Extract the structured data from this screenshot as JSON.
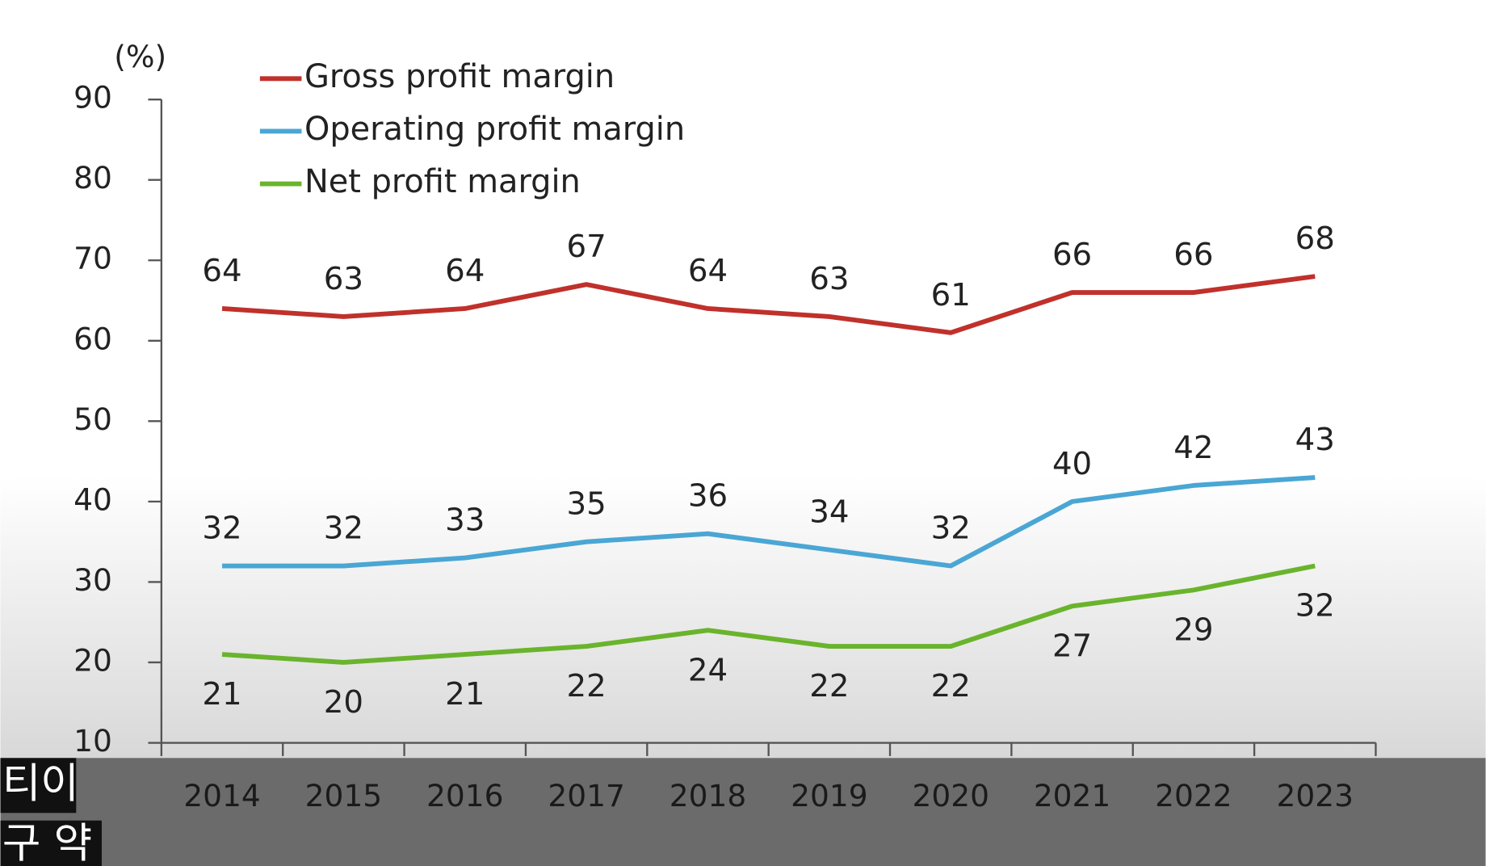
{
  "chart_data": {
    "type": "line",
    "unit_label": "(%)",
    "categories": [
      "2014",
      "2015",
      "2016",
      "2017",
      "2018",
      "2019",
      "2020",
      "2021",
      "2022",
      "2023"
    ],
    "series": [
      {
        "name": "Gross profit margin",
        "color": "#c0312b",
        "values": [
          64,
          63,
          64,
          67,
          64,
          63,
          61,
          66,
          66,
          68
        ]
      },
      {
        "name": "Operating profit margin",
        "color": "#4aa6d4",
        "values": [
          32,
          32,
          33,
          35,
          36,
          34,
          32,
          40,
          42,
          43
        ]
      },
      {
        "name": "Net profit margin",
        "color": "#6ab42d",
        "values": [
          21,
          20,
          21,
          22,
          24,
          22,
          22,
          27,
          29,
          32
        ]
      }
    ],
    "ylim": [
      10,
      90
    ],
    "yticks": [
      10,
      20,
      30,
      40,
      50,
      60,
      70,
      80,
      90
    ],
    "legend": "top-left"
  },
  "captions": [
    "티이",
    "구 약"
  ]
}
